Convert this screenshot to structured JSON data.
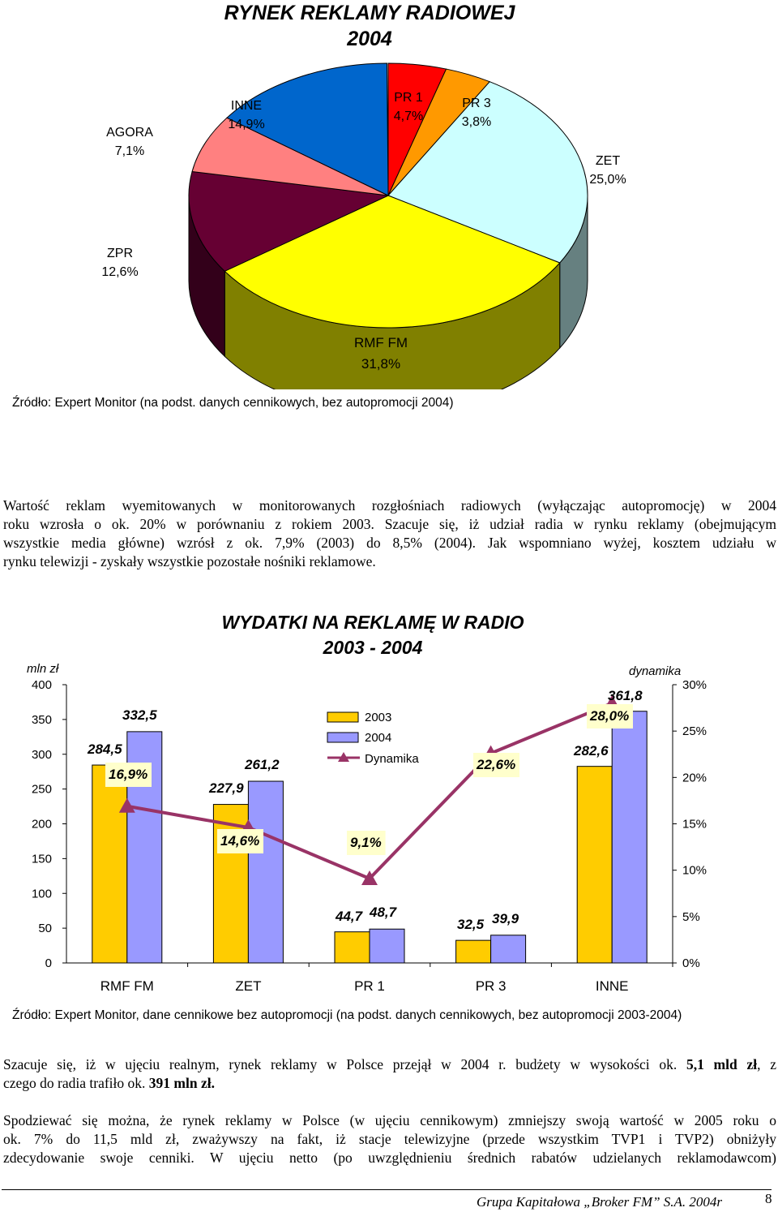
{
  "pie": {
    "title_line1": "RYNEK REKLAMY RADIOWEJ",
    "title_line2": "2004",
    "source": "Źródło: Expert Monitor (na podst. danych cennikowych, bez autopromocji 2004)",
    "slices": [
      {
        "name": "PR 1",
        "value": "4,7%",
        "pct": 4.7,
        "color": "#ff0000"
      },
      {
        "name": "PR 3",
        "value": "3,8%",
        "pct": 3.8,
        "color": "#ff9900"
      },
      {
        "name": "ZET",
        "value": "25,0%",
        "pct": 25.0,
        "color": "#ccffff"
      },
      {
        "name": "RMF FM",
        "value": "31,8%",
        "pct": 31.8,
        "color": "#ffff00"
      },
      {
        "name": "ZPR",
        "value": "12,6%",
        "pct": 12.6,
        "color": "#660033"
      },
      {
        "name": "AGORA",
        "value": "7,1%",
        "pct": 7.1,
        "color": "#ff8080"
      },
      {
        "name": "INNE",
        "value": "14,9%",
        "pct": 14.9,
        "color": "#0066cc"
      }
    ]
  },
  "paragraph1": [
    "Wartość reklam wyemitowanych w monitorowanych rozgłośniach radiowych (wyłączając autopromocję) w 2004",
    "roku wzrosła o ok. 20% w porównaniu z rokiem 2003. Szacuje się, iż udział radia w rynku reklamy (obejmującym",
    "wszystkie media główne) wzrósł z ok. 7,9% (2003) do 8,5% (2004). Jak wspomniano wyżej, kosztem udziału w",
    "rynku telewizji - zyskały wszystkie pozostałe nośniki reklamowe."
  ],
  "chart_data": {
    "type": "bar",
    "title": "WYDATKI NA REKLAMĘ W RADIO",
    "subtitle": "2003 - 2004",
    "ylabel": "mln zł",
    "y2label": "dynamika",
    "categories": [
      "RMF FM",
      "ZET",
      "PR 1",
      "PR 3",
      "INNE"
    ],
    "series": [
      {
        "name": "2003",
        "values": [
          284.5,
          227.9,
          44.7,
          32.5,
          282.6
        ],
        "labels": [
          "284,5",
          "227,9",
          "44,7",
          "32,5",
          "282,6"
        ],
        "color": "#ffcc00"
      },
      {
        "name": "2004",
        "values": [
          332.5,
          261.2,
          48.7,
          39.9,
          361.8
        ],
        "labels": [
          "332,5",
          "261,2",
          "48,7",
          "39,9",
          "361,8"
        ],
        "color": "#9999ff"
      },
      {
        "name": "Dynamika",
        "type": "line",
        "axis": "right",
        "values": [
          16.9,
          14.6,
          9.1,
          22.6,
          28.0
        ],
        "labels": [
          "16,9%",
          "14,6%",
          "9,1%",
          "22,6%",
          "28,0%"
        ],
        "color": "#993366"
      }
    ],
    "ylim": [
      0,
      400
    ],
    "yticks": [
      "0",
      "50",
      "100",
      "150",
      "200",
      "250",
      "300",
      "350",
      "400"
    ],
    "y2lim": [
      0,
      30
    ],
    "y2ticks": [
      "0%",
      "5%",
      "10%",
      "15%",
      "20%",
      "25%",
      "30%"
    ],
    "legend": "center-top",
    "source": "Źródło: Expert Monitor, dane cennikowe bez autopromocji (na podst. danych cennikowych, bez autopromocji 2003-2004)"
  },
  "paragraph2": [
    {
      "parts": [
        {
          "t": "Szacuje się, iż w ujęciu realnym, rynek reklamy w Polsce przejął w 2004 r. budżety w wysokości ok. "
        },
        {
          "t": "5,1 mld zł",
          "b": true
        },
        {
          "t": ", z"
        }
      ]
    },
    {
      "parts": [
        {
          "t": "czego do radia trafiło ok. "
        },
        {
          "t": "391 mln zł.",
          "b": true
        }
      ]
    }
  ],
  "paragraph3": [
    "Spodziewać się można, że rynek reklamy w Polsce (w ujęciu cennikowym) zmniejszy swoją wartość w 2005 roku o",
    "ok. 7% do 11,5 mld zł, zważywszy na fakt, iż stacje telewizyjne (przede wszystkim TVP1 i TVP2) obniżyły",
    "zdecydowanie swoje cenniki. W ujęciu netto (po uwzględnieniu średnich rabatów udzielanych reklamodawcom)"
  ],
  "footer": {
    "text": "Grupa Kapitałowa „Broker FM” S.A.  2004r",
    "page": "8"
  }
}
